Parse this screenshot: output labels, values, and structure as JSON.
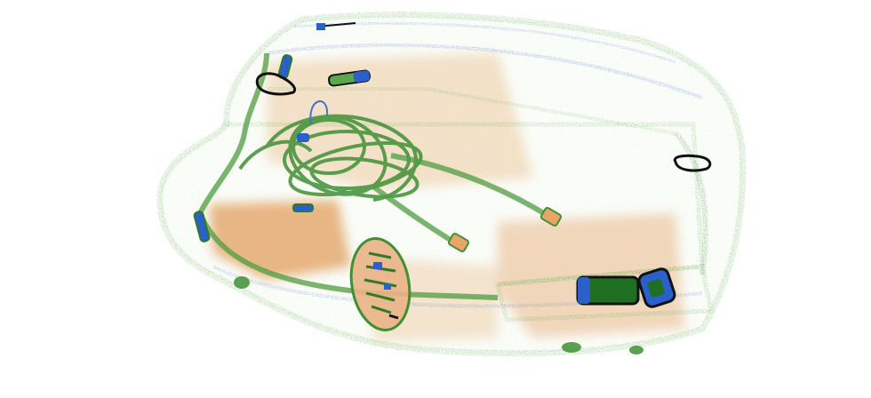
{
  "image": {
    "kind": "xray-baggage-scan",
    "background_color": "#ffffff",
    "palette": {
      "organic": "#e9a46a",
      "inorganic": "#5aa84a",
      "inorganic_dark": "#2f7a2a",
      "metal": "#2b5fc9",
      "dense_outline": "#111111"
    },
    "objects": [
      "bag-outline",
      "cable-tangle",
      "long-cables",
      "circuit-board",
      "batteries",
      "small-cylinders",
      "ring-clips",
      "organic-mass"
    ]
  }
}
